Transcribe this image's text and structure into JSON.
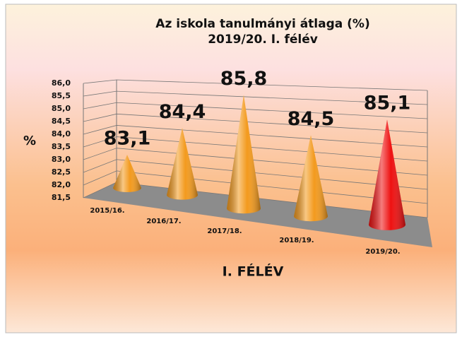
{
  "chart_data": {
    "type": "cone",
    "title": "Az iskola tanulmányi átlaga  (%)",
    "subtitle": "2019/20. I. félév",
    "y_label": "%",
    "x_label": "I. FÉLÉV",
    "categories": [
      "2015/16.",
      "2016/17.",
      "2017/18.",
      "2018/19.",
      "2019/20."
    ],
    "values": [
      83.1,
      84.4,
      85.8,
      84.5,
      85.1
    ],
    "value_labels": [
      "83,1",
      "84,4",
      "85,8",
      "84,5",
      "85,1"
    ],
    "colors": [
      "#f39a1e",
      "#f39a1e",
      "#f39a1e",
      "#f39a1e",
      "#ee1111"
    ],
    "ylim": [
      81.5,
      86
    ],
    "yticks": [
      {
        "value": 81.5,
        "label": "81,5"
      },
      {
        "value": 82,
        "label": "82,0"
      },
      {
        "value": 82.5,
        "label": "82,5"
      },
      {
        "value": 83,
        "label": "83,0"
      },
      {
        "value": 83.5,
        "label": "83,5"
      },
      {
        "value": 84,
        "label": "84,0"
      },
      {
        "value": 84.5,
        "label": "84,5"
      },
      {
        "value": 85,
        "label": "85,0"
      },
      {
        "value": 85.5,
        "label": "85,5"
      },
      {
        "value": 86,
        "label": "86,0"
      }
    ],
    "grid": true
  }
}
